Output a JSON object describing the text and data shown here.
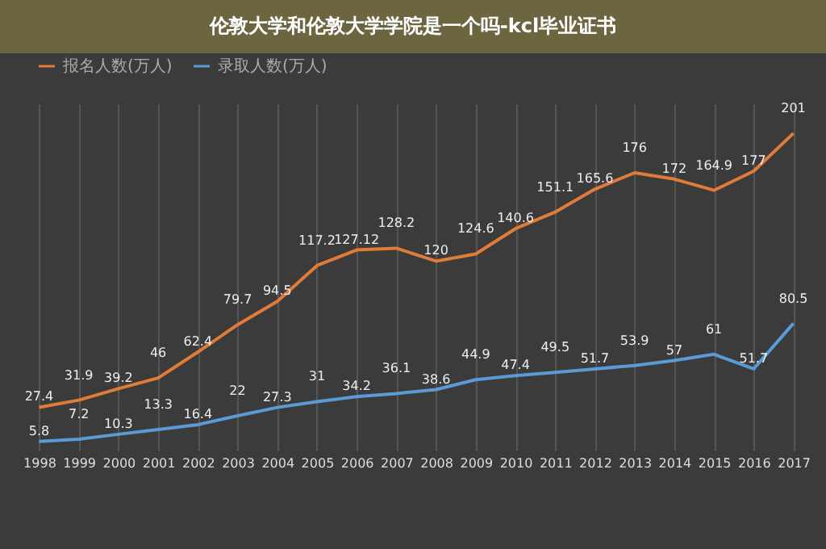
{
  "chart_data": {
    "type": "line",
    "title": "伦敦大学和伦敦大学学院是一个吗-kcl毕业证书",
    "categories": [
      "1998",
      "1999",
      "2000",
      "2001",
      "2002",
      "2003",
      "2004",
      "2005",
      "2006",
      "2007",
      "2008",
      "2009",
      "2010",
      "2011",
      "2012",
      "2013",
      "2014",
      "2015",
      "2016",
      "2017"
    ],
    "series": [
      {
        "name": "报名人数(万人)",
        "color": "#e07b39",
        "values": [
          27.4,
          31.9,
          39.2,
          46,
          62.4,
          79.7,
          94.5,
          117.2,
          127.12,
          128.2,
          120,
          124.6,
          140.6,
          151.1,
          165.6,
          176,
          172,
          164.9,
          177,
          201
        ]
      },
      {
        "name": "录取人数(万人)",
        "color": "#5b9bd5",
        "values": [
          5.8,
          7.2,
          10.3,
          13.3,
          16.4,
          22,
          27.3,
          31,
          34.2,
          36.1,
          38.6,
          44.9,
          47.4,
          49.5,
          51.7,
          53.9,
          57,
          61,
          51.7,
          80.5
        ]
      }
    ],
    "data_labels": true,
    "grid": "x",
    "legend": "top"
  }
}
